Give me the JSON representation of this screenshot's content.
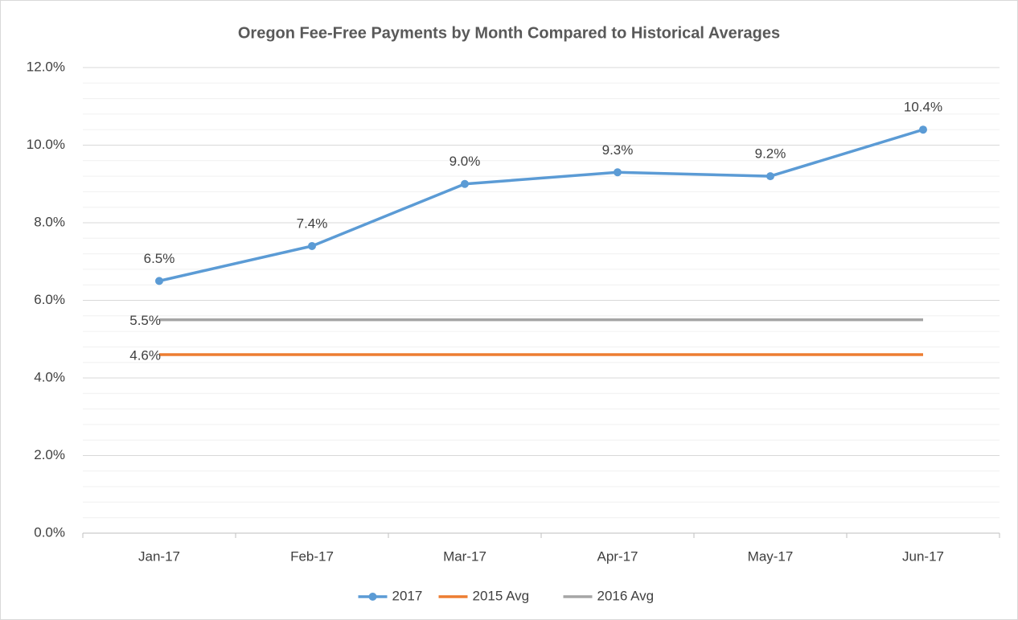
{
  "chart_data": {
    "type": "line",
    "title": "Oregon Fee-Free Payments by Month Compared to Historical Averages",
    "categories": [
      "Jan-17",
      "Feb-17",
      "Mar-17",
      "Apr-17",
      "May-17",
      "Jun-17"
    ],
    "series": [
      {
        "name": "2017",
        "color": "#5b9bd5",
        "markers": true,
        "values": [
          6.5,
          7.4,
          9.0,
          9.3,
          9.2,
          10.4
        ],
        "value_labels": [
          "6.5%",
          "7.4%",
          "9.0%",
          "9.3%",
          "9.2%",
          "10.4%"
        ]
      },
      {
        "name": "2015 Avg",
        "color": "#ed7d31",
        "markers": false,
        "values": [
          4.6,
          4.6,
          4.6,
          4.6,
          4.6,
          4.6
        ],
        "value_labels": [
          "4.6%",
          null,
          null,
          null,
          null,
          null
        ]
      },
      {
        "name": "2016 Avg",
        "color": "#a5a5a5",
        "markers": false,
        "values": [
          5.5,
          5.5,
          5.5,
          5.5,
          5.5,
          5.5
        ],
        "value_labels": [
          "5.5%",
          null,
          null,
          null,
          null,
          null
        ]
      }
    ],
    "ylim": [
      0,
      12
    ],
    "yticks": [
      {
        "value": 0,
        "label": "0.0%"
      },
      {
        "value": 2,
        "label": "2.0%"
      },
      {
        "value": 4,
        "label": "4.0%"
      },
      {
        "value": 6,
        "label": "6.0%"
      },
      {
        "value": 8,
        "label": "8.0%"
      },
      {
        "value": 10,
        "label": "10.0%"
      },
      {
        "value": 12,
        "label": "12.0%"
      }
    ],
    "grid": true,
    "minor_grid_step": 0.4,
    "legend": "bottom"
  }
}
